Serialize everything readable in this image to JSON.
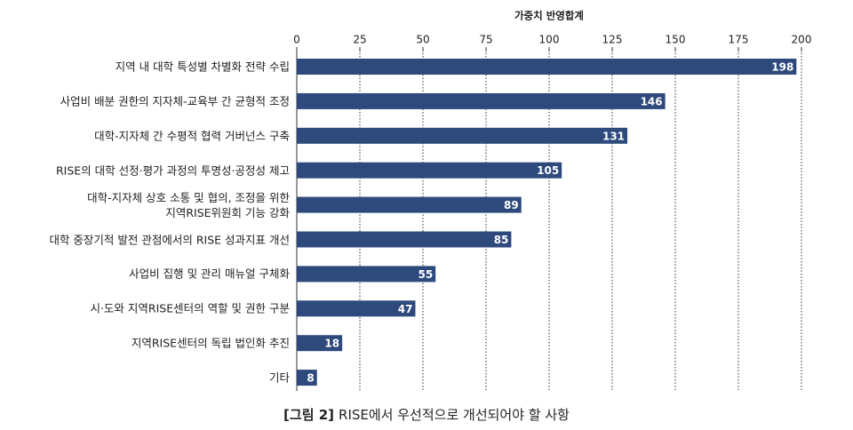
{
  "chart_data": {
    "type": "barh",
    "x_label": "가중치 반영합계",
    "categories": [
      "지역 내 대학 특성별 차별화 전략 수립",
      "사업비 배분 권한의 지자체-교육부 간 균형적 조정",
      "대학-지자체 간 수평적 협력 거버넌스 구축",
      "RISE의 대학 선정·평가 과정의 투명성·공정성 제고",
      "대학-지자체 상호 소통 및 협의, 조정을 위한\n지역RISE위원회 기능 강화",
      "대학 중장기적 발전 관점에서의 RISE 성과지표 개선",
      "사업비 집행 및 관리 매뉴얼 구체화",
      "시·도와 지역RISE센터의 역할 및 권한 구분",
      "지역RISE센터의 독립 법인화 추진",
      "기타"
    ],
    "values": [
      198,
      146,
      131,
      105,
      89,
      85,
      55,
      47,
      18,
      8
    ],
    "color": "#2e4a7c",
    "xlim": [
      0,
      200
    ],
    "xticks": [
      0,
      25,
      50,
      75,
      100,
      125,
      150,
      175,
      200
    ],
    "grid": true,
    "caption_label": "[그림 2]",
    "caption": "RISE에서 우선적으로 개선되어야 할 사항"
  }
}
